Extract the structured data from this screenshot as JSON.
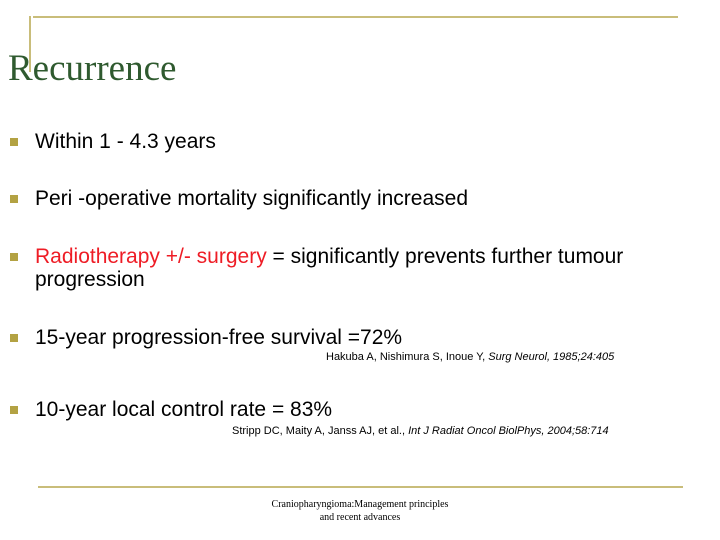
{
  "slide": {
    "title": "Recurrence",
    "bullets": [
      {
        "text": "Within 1 - 4.3 years"
      },
      {
        "text": "Peri -operative mortality significantly increased"
      },
      {
        "highlight": "Radiotherapy +/- surgery",
        "text": " = significantly prevents further tumour progression"
      },
      {
        "text": "15-year progression-free survival =72%"
      },
      {
        "text": "10-year local control rate = 83%"
      }
    ],
    "citations": [
      {
        "authors": "Hakuba A, Nishimura S, Inoue Y, ",
        "journal": "Surg Neurol, 1985;24:405"
      },
      {
        "authors": "Stripp DC, Maity A, Janss AJ, et al., ",
        "journal": "Int J Radiat Oncol BiolPhys, 2004;58:714"
      }
    ],
    "footer": {
      "line1": "Craniopharyngioma:Management principles",
      "line2": "and recent advances"
    },
    "colors": {
      "title": "#2f5a2f",
      "accent_lines": "#c9bd7a",
      "bullet": "#b3a243",
      "highlight": "#ee1c25"
    }
  }
}
